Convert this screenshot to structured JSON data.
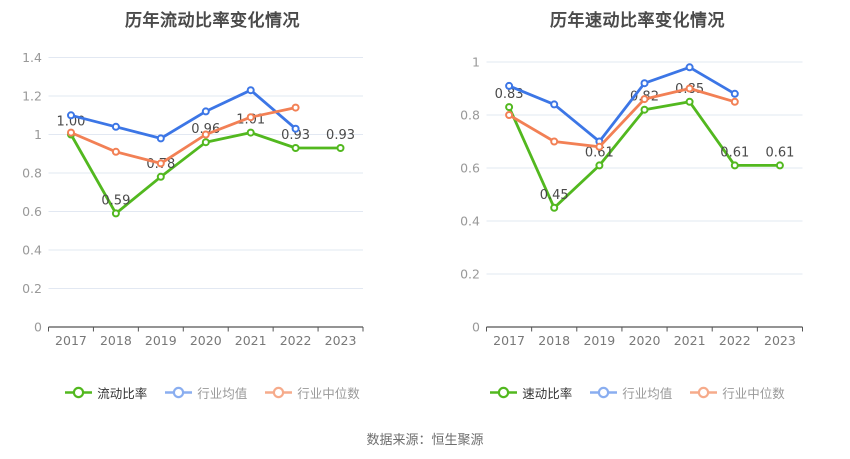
{
  "source_text": "数据来源：恒生聚源",
  "colors": {
    "background": "#ffffff",
    "grid_line": "#e2e8f2",
    "axis_line": "#555555",
    "y_tick_label": "#999999",
    "x_tick_label": "#787878",
    "point_label": "#4a4a4a",
    "title": "#4a4a4a",
    "source_text": "#6e6e6e",
    "green_line": "#52b81f",
    "blue_line": "#3c76e6",
    "orange_line": "#f28055",
    "legend_blue": "#8aaef0",
    "legend_orange": "#f6ab8b",
    "legend_text_primary": "#333333",
    "legend_text_secondary": "#999999"
  },
  "chart_data": [
    {
      "type": "line",
      "title": "历年流动比率变化情况",
      "categories": [
        "2017",
        "2018",
        "2019",
        "2020",
        "2021",
        "2022",
        "2023"
      ],
      "y_axis": {
        "min": 0,
        "max": 1.4,
        "step": 0.2,
        "tick_labels": [
          "0",
          "0.2",
          "0.4",
          "0.6",
          "0.8",
          "1",
          "1.2",
          "1.4"
        ]
      },
      "grid": true,
      "legend_position": "bottom",
      "series": [
        {
          "id": "current-ratio",
          "name": "流动比率",
          "color": "#52b81f",
          "legend_color": "#52b81f",
          "legend_text_color": "#333333",
          "values": [
            1.0,
            0.59,
            0.78,
            0.96,
            1.01,
            0.93,
            0.93
          ],
          "point_labels": [
            "1.00",
            "0.59",
            "0.78",
            "0.96",
            "1.01",
            "0.93",
            "0.93"
          ]
        },
        {
          "id": "industry-mean",
          "name": "行业均值",
          "color": "#3c76e6",
          "legend_color": "#8aaef0",
          "legend_text_color": "#999999",
          "values": [
            1.1,
            1.04,
            0.98,
            1.12,
            1.23,
            1.03,
            null
          ],
          "point_labels": null
        },
        {
          "id": "industry-median",
          "name": "行业中位数",
          "color": "#f28055",
          "legend_color": "#f6ab8b",
          "legend_text_color": "#999999",
          "values": [
            1.01,
            0.91,
            0.85,
            1.0,
            1.09,
            1.14,
            null
          ],
          "point_labels": null
        }
      ]
    },
    {
      "type": "line",
      "title": "历年速动比率变化情况",
      "categories": [
        "2017",
        "2018",
        "2019",
        "2020",
        "2021",
        "2022",
        "2023"
      ],
      "y_axis": {
        "min": 0,
        "max": 1.0,
        "step": 0.2,
        "tick_labels": [
          "0",
          "0.2",
          "0.4",
          "0.6",
          "0.8",
          "1"
        ]
      },
      "grid": true,
      "legend_position": "bottom",
      "series": [
        {
          "id": "quick-ratio",
          "name": "速动比率",
          "color": "#52b81f",
          "legend_color": "#52b81f",
          "legend_text_color": "#333333",
          "values": [
            0.83,
            0.45,
            0.61,
            0.82,
            0.85,
            0.61,
            0.61
          ],
          "point_labels": [
            "0.83",
            "0.45",
            "0.61",
            "0.82",
            "0.85",
            "0.61",
            "0.61"
          ]
        },
        {
          "id": "industry-mean",
          "name": "行业均值",
          "color": "#3c76e6",
          "legend_color": "#8aaef0",
          "legend_text_color": "#999999",
          "values": [
            0.91,
            0.84,
            0.7,
            0.92,
            0.98,
            0.88,
            null
          ],
          "point_labels": null
        },
        {
          "id": "industry-median",
          "name": "行业中位数",
          "color": "#f28055",
          "legend_color": "#f6ab8b",
          "legend_text_color": "#999999",
          "values": [
            0.8,
            0.7,
            0.68,
            0.86,
            0.9,
            0.85,
            null
          ],
          "point_labels": null
        }
      ]
    }
  ]
}
